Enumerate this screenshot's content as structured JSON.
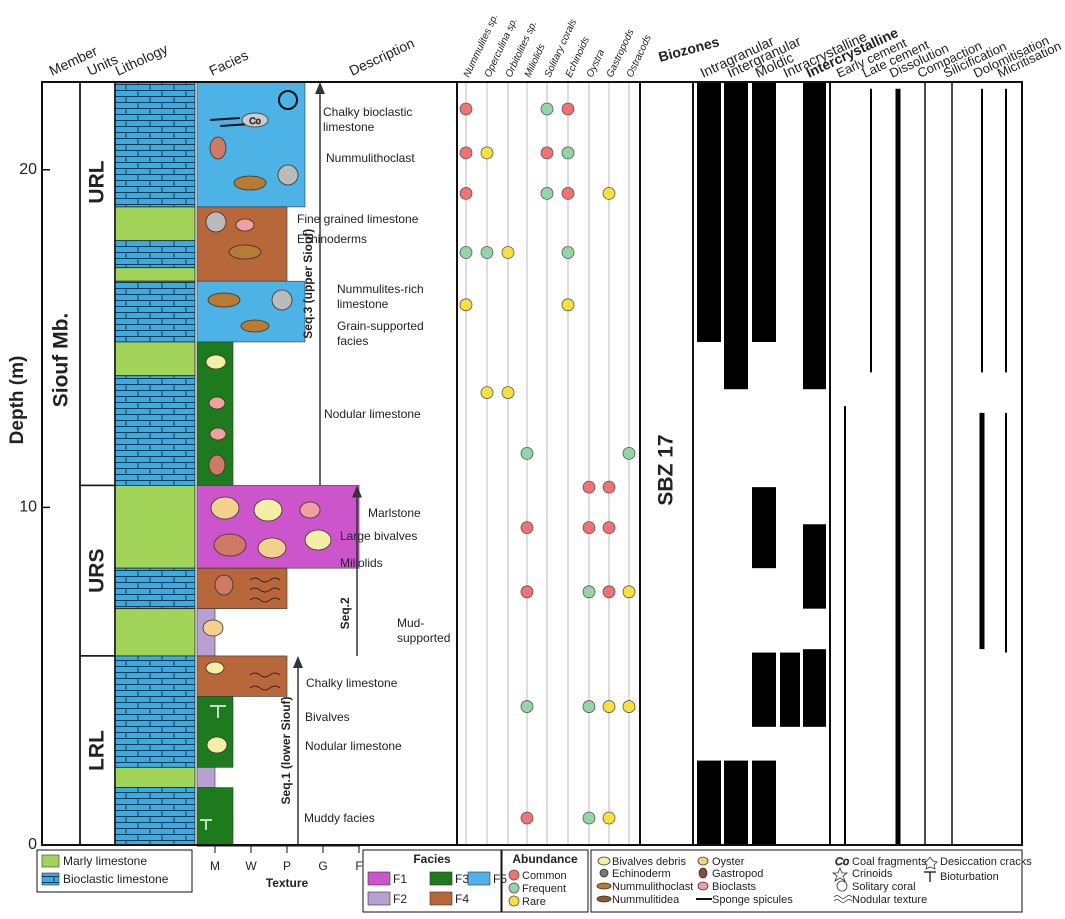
{
  "headers": {
    "member": "Member",
    "units": "Units",
    "lithology": "Lithology",
    "facies": "Facies",
    "description": "Description",
    "biozones": "Biozones"
  },
  "depth_axis": {
    "label": "Depth (m)",
    "ticks": [
      0,
      10,
      20
    ],
    "range": [
      0,
      22.6
    ]
  },
  "member": "Siouf Mb.",
  "units": [
    {
      "name": "URL",
      "top": 22.6,
      "base": 10.65
    },
    {
      "name": "URS",
      "top": 10.65,
      "base": 5.6
    },
    {
      "name": "LRL",
      "top": 5.6,
      "base": 0
    }
  ],
  "lithology": {
    "types": [
      {
        "name": "Marly limestone",
        "color": "#a3d45a"
      },
      {
        "name": "Bioclastic limestone",
        "color": "#35aee6"
      }
    ],
    "beds": [
      {
        "type": 1,
        "top": 22.6,
        "base": 20.75
      },
      {
        "type": 1,
        "top": 20.75,
        "base": 18.9
      },
      {
        "type": 0,
        "top": 18.9,
        "base": 17.9
      },
      {
        "type": 1,
        "top": 17.9,
        "base": 17.1
      },
      {
        "type": 0,
        "top": 17.1,
        "base": 16.7
      },
      {
        "type": 1,
        "top": 16.7,
        "base": 14.9
      },
      {
        "type": 0,
        "top": 14.9,
        "base": 13.9
      },
      {
        "type": 1,
        "top": 13.9,
        "base": 10.65
      },
      {
        "type": 0,
        "top": 10.65,
        "base": 8.2
      },
      {
        "type": 1,
        "top": 8.2,
        "base": 7.0
      },
      {
        "type": 0,
        "top": 7.0,
        "base": 5.6
      },
      {
        "type": 1,
        "top": 5.6,
        "base": 2.3
      },
      {
        "type": 0,
        "top": 2.3,
        "base": 1.7
      },
      {
        "type": 1,
        "top": 1.7,
        "base": 0
      }
    ]
  },
  "facies": {
    "legend_title": "Facies",
    "types": [
      {
        "name": "F1",
        "color": "#cc55cc"
      },
      {
        "name": "F2",
        "color": "#b9a0d2"
      },
      {
        "name": "F3",
        "color": "#1d7a1d"
      },
      {
        "name": "F4",
        "color": "#b8673b"
      },
      {
        "name": "F5",
        "color": "#4db3e6"
      }
    ],
    "beds": [
      {
        "type": 4,
        "top": 22.6,
        "base": 18.9,
        "texture": 3.5
      },
      {
        "type": 3,
        "top": 18.9,
        "base": 16.7,
        "texture": 3
      },
      {
        "type": 4,
        "top": 16.7,
        "base": 14.9,
        "texture": 3.5
      },
      {
        "type": 2,
        "top": 14.9,
        "base": 10.65,
        "texture": 1.5
      },
      {
        "type": 0,
        "top": 10.65,
        "base": 8.2,
        "texture": 5
      },
      {
        "type": 3,
        "top": 8.2,
        "base": 7.0,
        "texture": 3
      },
      {
        "type": 1,
        "top": 7.0,
        "base": 5.6,
        "texture": 1
      },
      {
        "type": 3,
        "top": 5.6,
        "base": 4.4,
        "texture": 3
      },
      {
        "type": 2,
        "top": 4.4,
        "base": 2.3,
        "texture": 1.5
      },
      {
        "type": 1,
        "top": 2.3,
        "base": 1.7,
        "texture": 1
      },
      {
        "type": 2,
        "top": 1.7,
        "base": 0,
        "texture": 1.5
      }
    ]
  },
  "texture": {
    "label": "Texture",
    "classes": [
      "M",
      "W",
      "P",
      "G",
      "F"
    ]
  },
  "sequences": [
    {
      "label": "Seq.3 (upper Siouf)",
      "top": 22.6,
      "base": 10.65
    },
    {
      "label": "Seq.2",
      "top": 10.65,
      "base": 5.6
    },
    {
      "label": "Seq.1 (lower Siouf)",
      "top": 5.6,
      "base": 0
    }
  ],
  "descriptions": [
    {
      "text": "Chalky bioclastic limestone",
      "depth": 21.5
    },
    {
      "text": "Nummulithoclast",
      "depth": 20.35
    },
    {
      "text": "Fine grained limestone",
      "depth": 18.55
    },
    {
      "text": "Echinoderms",
      "depth": 17.96
    },
    {
      "text": "Nummulites-rich limestone",
      "depth": 16.27
    },
    {
      "text": "Grain-supported facies",
      "depth": 15.18
    },
    {
      "text": "Nodular limestone",
      "depth": 12.78
    },
    {
      "text": "Marlstone",
      "depth": 9.85
    },
    {
      "text": "Large bivalves",
      "depth": 9.17
    },
    {
      "text": "Miliolids",
      "depth": 8.37
    },
    {
      "text": "Mud-supported",
      "depth": 6.36
    },
    {
      "text": "Chalky limestone",
      "depth": 4.82
    },
    {
      "text": "Bivalves",
      "depth": 3.82
    },
    {
      "text": "Nodular limestone",
      "depth": 2.96
    },
    {
      "text": "Muddy facies",
      "depth": 0.8
    }
  ],
  "fossils": {
    "taxa": [
      "Nummulites sp.",
      "Operculina sp.",
      "Orbitolites sp.",
      "Miliolids",
      "Solitary corals",
      "Echinoids",
      "Oystra",
      "Gastropods",
      "Ostracods"
    ],
    "samples": [
      {
        "depth": 21.8,
        "taxa": [
          0,
          4,
          5
        ],
        "abundance": [
          0,
          1,
          0
        ]
      },
      {
        "depth": 20.5,
        "taxa": [
          0,
          1,
          4,
          5
        ],
        "abundance": [
          0,
          2,
          0,
          1
        ]
      },
      {
        "depth": 19.3,
        "taxa": [
          0,
          4,
          5,
          7
        ],
        "abundance": [
          0,
          1,
          0,
          2
        ]
      },
      {
        "depth": 17.55,
        "taxa": [
          0,
          1,
          2,
          5
        ],
        "abundance": [
          1,
          1,
          2,
          1
        ]
      },
      {
        "depth": 16.0,
        "taxa": [
          0,
          5
        ],
        "abundance": [
          2,
          2
        ]
      },
      {
        "depth": 13.4,
        "taxa": [
          1,
          2
        ],
        "abundance": [
          2,
          2
        ]
      },
      {
        "depth": 11.6,
        "taxa": [
          3,
          8
        ],
        "abundance": [
          1,
          1
        ]
      },
      {
        "depth": 10.6,
        "taxa": [
          6,
          7
        ],
        "abundance": [
          0,
          0
        ]
      },
      {
        "depth": 9.4,
        "taxa": [
          3,
          6,
          7
        ],
        "abundance": [
          0,
          0,
          0
        ]
      },
      {
        "depth": 7.5,
        "taxa": [
          3,
          6,
          7,
          8
        ],
        "abundance": [
          0,
          1,
          0,
          2
        ]
      },
      {
        "depth": 4.1,
        "taxa": [
          3,
          6,
          7,
          8
        ],
        "abundance": [
          1,
          1,
          2,
          2
        ]
      },
      {
        "depth": 0.8,
        "taxa": [
          3,
          6,
          7
        ],
        "abundance": [
          0,
          1,
          2
        ]
      }
    ]
  },
  "abundance": {
    "title": "Abundance",
    "levels": [
      {
        "name": "Common",
        "color": "#f07272"
      },
      {
        "name": "Frequent",
        "color": "#93d6a3"
      },
      {
        "name": "Rare",
        "color": "#f8e040"
      }
    ]
  },
  "biozone": "SBZ 17",
  "porosity": {
    "types": [
      "Intragranular",
      "Intergranular",
      "Moldic",
      "Intracrystalline",
      "Intercrystalline"
    ],
    "intervals": [
      {
        "type": 0,
        "top": 22.6,
        "base": 14.9
      },
      {
        "type": 0,
        "top": 2.5,
        "base": 0
      },
      {
        "type": 1,
        "top": 22.6,
        "base": 13.5
      },
      {
        "type": 1,
        "top": 2.5,
        "base": 0
      },
      {
        "type": 2,
        "top": 22.6,
        "base": 14.9
      },
      {
        "type": 2,
        "top": 10.6,
        "base": 8.2
      },
      {
        "type": 2,
        "top": 5.7,
        "base": 3.5
      },
      {
        "type": 2,
        "top": 2.5,
        "base": 0
      },
      {
        "type": 3,
        "top": 5.7,
        "base": 3.5
      },
      {
        "type": 4,
        "top": 22.6,
        "base": 13.5
      },
      {
        "type": 4,
        "top": 9.5,
        "base": 7.0
      },
      {
        "type": 4,
        "top": 5.8,
        "base": 3.5
      }
    ]
  },
  "diagenesis": {
    "types": [
      "Early cement",
      "Late cement",
      "Dissolution",
      "Compaction",
      "Silicification",
      "Dolomitisation",
      "Micritisation"
    ],
    "intervals": [
      {
        "type": 0,
        "top": 13.0,
        "base": 0,
        "thick": false
      },
      {
        "type": 1,
        "top": 22.4,
        "base": 14.0,
        "thick": false
      },
      {
        "type": 2,
        "top": 22.4,
        "base": 0,
        "thick": true
      },
      {
        "type": 5,
        "top": 22.4,
        "base": 14.0,
        "thick": false
      },
      {
        "type": 5,
        "top": 12.8,
        "base": 5.8,
        "thick": true
      },
      {
        "type": 6,
        "top": 22.4,
        "base": 14.0,
        "thick": false
      },
      {
        "type": 6,
        "top": 12.8,
        "base": 5.7,
        "thick": false
      }
    ]
  },
  "coal_symbol": "Co",
  "symbols": [
    "Bivalves debris",
    "Echinoderm",
    "Nummulithoclast",
    "Nummulitidea",
    "Oyster",
    "Gastropod",
    "Bioclasts",
    "Sponge spicules",
    "Coal fragments",
    "Crinoids",
    "Solitary coral",
    "Nodular texture",
    "Desiccation cracks",
    "Bioturbation"
  ]
}
